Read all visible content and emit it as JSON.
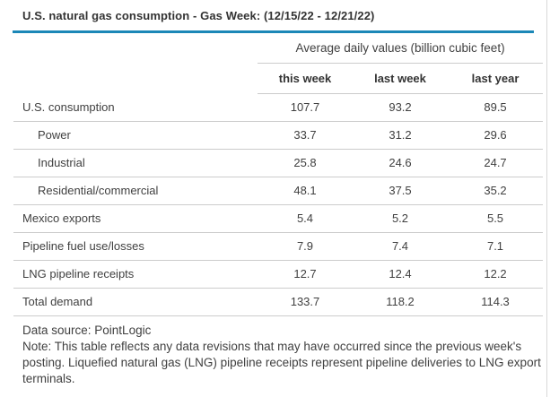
{
  "title": "U.S. natural gas consumption - Gas Week: (12/15/22 - 12/21/22)",
  "table": {
    "group_header": "Average daily values (billion cubic feet)",
    "columns": [
      "this week",
      "last week",
      "last year"
    ],
    "rows": [
      {
        "label": "U.S. consumption",
        "indent": false,
        "values": [
          "107.7",
          "93.2",
          "89.5"
        ]
      },
      {
        "label": "Power",
        "indent": true,
        "values": [
          "33.7",
          "31.2",
          "29.6"
        ]
      },
      {
        "label": "Industrial",
        "indent": true,
        "values": [
          "25.8",
          "24.6",
          "24.7"
        ]
      },
      {
        "label": "Residential/commercial",
        "indent": true,
        "values": [
          "48.1",
          "37.5",
          "35.2"
        ]
      },
      {
        "label": "Mexico exports",
        "indent": false,
        "values": [
          "5.4",
          "5.2",
          "5.5"
        ]
      },
      {
        "label": "Pipeline fuel use/losses",
        "indent": false,
        "values": [
          "7.9",
          "7.4",
          "7.1"
        ]
      },
      {
        "label": "LNG pipeline receipts",
        "indent": false,
        "values": [
          "12.7",
          "12.4",
          "12.2"
        ]
      },
      {
        "label": "Total demand",
        "indent": false,
        "values": [
          "133.7",
          "118.2",
          "114.3"
        ]
      }
    ]
  },
  "footer": {
    "source": "Data source: PointLogic",
    "note": "Note: This table reflects any data revisions that may have occurred since the previous week's posting. Liquefied natural gas (LNG) pipeline receipts represent pipeline deliveries to LNG export terminals."
  },
  "colors": {
    "accent_rule": "#1b87b7",
    "grid_line": "#cccccc",
    "edge_divider": "#d9d9d9",
    "text": "#404040",
    "heading_text": "#333333"
  },
  "chart_data": {
    "type": "table",
    "title": "U.S. natural gas consumption - Gas Week: (12/15/22 - 12/21/22)",
    "units": "Average daily values (billion cubic feet)",
    "categories": [
      "U.S. consumption",
      "Power",
      "Industrial",
      "Residential/commercial",
      "Mexico exports",
      "Pipeline fuel use/losses",
      "LNG pipeline receipts",
      "Total demand"
    ],
    "series": [
      {
        "name": "this week",
        "values": [
          107.7,
          33.7,
          25.8,
          48.1,
          5.4,
          7.9,
          12.7,
          133.7
        ]
      },
      {
        "name": "last week",
        "values": [
          93.2,
          31.2,
          24.6,
          37.5,
          5.2,
          7.4,
          12.4,
          118.2
        ]
      },
      {
        "name": "last year",
        "values": [
          89.5,
          29.6,
          24.7,
          35.2,
          5.5,
          7.1,
          12.2,
          114.3
        ]
      }
    ]
  }
}
